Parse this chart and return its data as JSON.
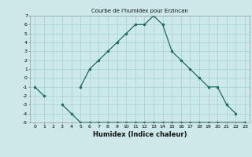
{
  "title": "Courbe de l'humidex pour Erzincan",
  "xlabel": "Humidex (Indice chaleur)",
  "line1_x": [
    0,
    1,
    2,
    3,
    4,
    5,
    6,
    7,
    8,
    9,
    10,
    11,
    12,
    13,
    14,
    15,
    16,
    17,
    18,
    19,
    20,
    21,
    22
  ],
  "line1_y": [
    -1,
    -2,
    null,
    null,
    null,
    -1,
    1,
    2,
    3,
    4,
    5,
    6,
    6,
    7,
    6,
    3,
    2,
    1,
    0,
    -1,
    -1,
    -3,
    -4
  ],
  "line2_x": [
    3,
    4,
    5,
    6,
    7,
    8,
    9,
    10,
    11,
    12,
    13,
    14,
    15,
    16,
    17,
    18,
    19,
    20,
    23
  ],
  "line2_y": [
    -3,
    -4,
    -5,
    -5,
    -5,
    -5,
    -5,
    -5,
    -5,
    -5,
    -5,
    -5,
    -5,
    -5,
    -5,
    -5,
    -5,
    -5,
    -5
  ],
  "line_color": "#1a6b5a",
  "bg_color": "#cce8e8",
  "grid_color": "#aad4d4",
  "ylim": [
    -5,
    7
  ],
  "xlim": [
    -0.5,
    23.5
  ],
  "yticks": [
    -5,
    -4,
    -3,
    -2,
    -1,
    0,
    1,
    2,
    3,
    4,
    5,
    6,
    7
  ],
  "xticks": [
    0,
    1,
    2,
    3,
    4,
    5,
    6,
    7,
    8,
    9,
    10,
    11,
    12,
    13,
    14,
    15,
    16,
    17,
    18,
    19,
    20,
    21,
    22,
    23
  ]
}
